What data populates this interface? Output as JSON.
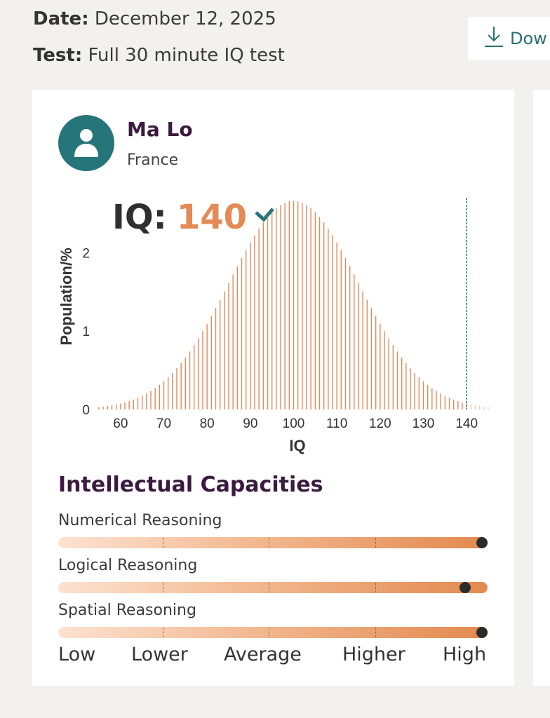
{
  "header": {
    "date_label": "Date:",
    "date_value": "December 12, 2025",
    "test_label": "Test:",
    "test_value": "Full 30 minute IQ test",
    "download_label": "Dow",
    "download_icon": "download-icon"
  },
  "profile": {
    "name": "Ma Lo",
    "country": "France",
    "avatar_icon": "user-icon"
  },
  "result": {
    "iq_label": "IQ:",
    "iq_value": "140",
    "verified_icon": "check-icon"
  },
  "chart_data": {
    "type": "bar",
    "xlabel": "IQ",
    "ylabel": "Population/%",
    "xlim": [
      55,
      145
    ],
    "ylim": [
      0,
      2.7
    ],
    "x_ticks": [
      60,
      70,
      80,
      90,
      100,
      110,
      120,
      130,
      140
    ],
    "y_ticks": [
      0,
      1,
      2
    ],
    "mean": 100,
    "std_dev": 15,
    "distribution": "normal",
    "marker_x": 140,
    "bar_color": "#e0895a",
    "marker_color": "#26757a"
  },
  "capacities": {
    "title": "Intellectual Capacities",
    "items": [
      {
        "label": "Numerical Reasoning",
        "level": 1.0
      },
      {
        "label": "Logical Reasoning",
        "level": 0.96
      },
      {
        "label": "Spatial Reasoning",
        "level": 1.0
      }
    ],
    "scale": [
      "Low",
      "Lower",
      "Average",
      "Higher",
      "High"
    ]
  },
  "colors": {
    "accent_orange": "#e38a57",
    "accent_teal": "#26757a",
    "title_purple": "#3a1a3f"
  }
}
